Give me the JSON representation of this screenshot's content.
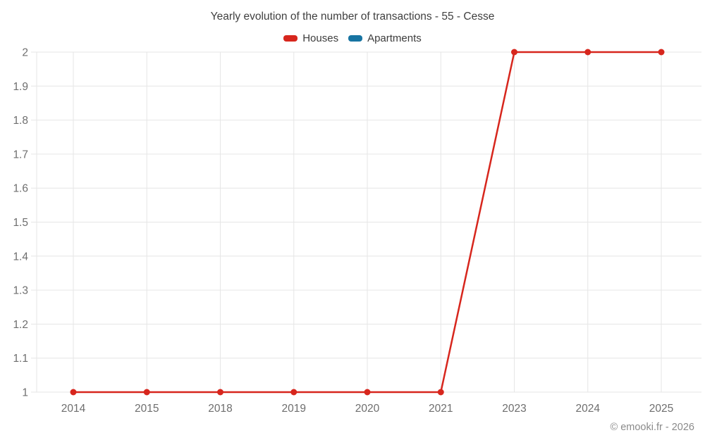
{
  "header": {
    "title": "Yearly evolution of the number of transactions - 55 - Cesse"
  },
  "footer": {
    "copyright": "© emooki.fr - 2026"
  },
  "chart_data": {
    "type": "line",
    "title": "Yearly evolution of the number of transactions - 55 - Cesse",
    "categories": [
      "2014",
      "2015",
      "2018",
      "2019",
      "2020",
      "2021",
      "2023",
      "2024",
      "2025"
    ],
    "series": [
      {
        "name": "Houses",
        "color": "#d7261d",
        "values": [
          1,
          1,
          1,
          1,
          1,
          1,
          2,
          2,
          2
        ]
      },
      {
        "name": "Apartments",
        "color": "#1774a2",
        "values": []
      }
    ],
    "xlabel": "",
    "ylabel": "",
    "ylim": [
      1,
      2
    ],
    "yticks": [
      1,
      1.1,
      1.2,
      1.3,
      1.4,
      1.5,
      1.6,
      1.7,
      1.8,
      1.9,
      2
    ],
    "grid": true,
    "legend_position": "top",
    "grid_color": "#e6e6e6",
    "tick_label_color": "#6e6e6e"
  }
}
